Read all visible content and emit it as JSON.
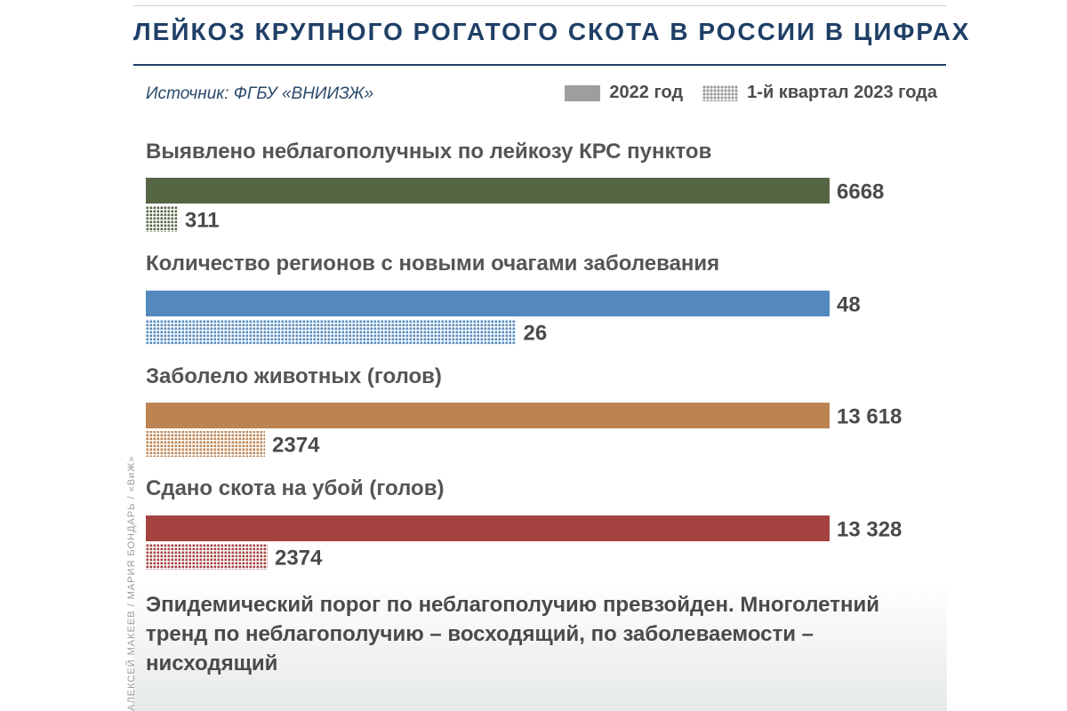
{
  "title": "ЛЕЙКОЗ КРУПНОГО РОГАТОГО СКОТА В РОССИИ В ЦИФРАХ",
  "source": "Источник: ФГБУ «ВНИИЗЖ»",
  "legend": {
    "series_2022": "2022 год",
    "series_2023q1": "1-й квартал 2023 года"
  },
  "footnote": "Эпидемический порог по неблагополучию превзойден. Многолетний тренд по неблагополучию – восходящий, по заболеваемости – нисходящий",
  "credit": "АЛЕКСЕЙ МАКЕЕВ / МАРИЯ БОНДАРЬ / «ВиЖ»",
  "chart_data": {
    "type": "bar",
    "orientation": "horizontal",
    "title": "ЛЕЙКОЗ КРУПНОГО РОГАТОГО СКОТА В РОССИИ В ЦИФРАХ",
    "legend_position": "top-right",
    "series": [
      {
        "name": "2022 год",
        "style": "solid"
      },
      {
        "name": "1-й квартал 2023 года",
        "style": "dotted"
      }
    ],
    "categories": [
      {
        "label": "Выявлено неблагополучных по лейкозу КРС пунктов",
        "color": "#566644",
        "values": [
          6668,
          311
        ],
        "value_labels": [
          "6668",
          "311"
        ]
      },
      {
        "label": "Количество регионов с новыми очагами заболевания",
        "color": "#5389bd",
        "values": [
          48,
          26
        ],
        "value_labels": [
          "48",
          "26"
        ]
      },
      {
        "label": "Заболело животных (голов)",
        "color": "#bd8352",
        "values": [
          13618,
          2374
        ],
        "value_labels": [
          "13 618",
          "2374"
        ]
      },
      {
        "label": "Сдано скота на убой (голов)",
        "color": "#a4433f",
        "values": [
          13328,
          2374
        ],
        "value_labels": [
          "13 328",
          "2374"
        ]
      }
    ]
  }
}
